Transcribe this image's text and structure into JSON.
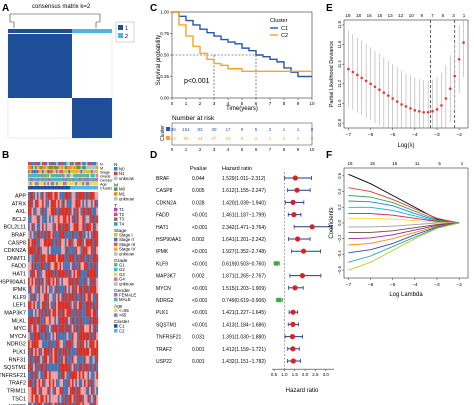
{
  "panel_letters": {
    "A": "A",
    "B": "B",
    "C": "C",
    "D": "D",
    "E": "E",
    "F": "F"
  },
  "panelA": {
    "title": "consensus matrix k=2",
    "legend": [
      "1",
      "2"
    ],
    "colors": {
      "c1": "#1f4e99",
      "c2": "#4fb4e6",
      "dark": "#1f4e99",
      "light": "#ffffff"
    }
  },
  "panelB": {
    "track_labels": [
      "N",
      "M",
      "Stage",
      "Grade",
      "Gender",
      "Age",
      "Cluster"
    ],
    "genes": [
      "APP",
      "ATRX",
      "AXL",
      "BCL2",
      "BCL2L11",
      "BRAF",
      "CASP8",
      "CDKN2A",
      "DNMT1",
      "FADD",
      "HAT1",
      "HSP90AA1",
      "IPMK",
      "KLF9",
      "LEF1",
      "MAP3K7",
      "MLKL",
      "MYC",
      "MYCN",
      "NDRG2",
      "PLK1",
      "RNF31",
      "SQSTM1",
      "TNFRSF21",
      "TRAF2",
      "TRIM11",
      "TSC1",
      "USP22"
    ],
    "legend": [
      {
        "title": "N",
        "items": [
          {
            "label": "N0",
            "color": "#1e88e5"
          },
          {
            "label": "N1",
            "color": "#e53935"
          },
          {
            "label": "unknow",
            "color": "#bdbdbd"
          }
        ]
      },
      {
        "title": "M",
        "items": [
          {
            "label": "M0",
            "color": "#43a047"
          },
          {
            "label": "M1",
            "color": "#fb8c00"
          },
          {
            "label": "unknow",
            "color": "#bdbdbd"
          }
        ]
      },
      {
        "title": "T",
        "items": [
          {
            "label": "T1",
            "color": "#ab47bc"
          },
          {
            "label": "T2",
            "color": "#ec407a"
          },
          {
            "label": "T3",
            "color": "#8d6e63"
          },
          {
            "label": "T4",
            "color": "#26a69a"
          }
        ]
      },
      {
        "title": "Stage",
        "items": [
          {
            "label": "Stage I",
            "color": "#c0ca33"
          },
          {
            "label": "Stage II",
            "color": "#5c6bc0"
          },
          {
            "label": "Stage III",
            "color": "#ef5350"
          },
          {
            "label": "Stage IV",
            "color": "#ffa726"
          },
          {
            "label": "unknow",
            "color": "#bdbdbd"
          }
        ]
      },
      {
        "title": "Grade",
        "items": [
          {
            "label": "G1",
            "color": "#66bb6a"
          },
          {
            "label": "G2",
            "color": "#29b6f6"
          },
          {
            "label": "G3",
            "color": "#d4e157"
          },
          {
            "label": "G4",
            "color": "#f06292"
          },
          {
            "label": "unknow",
            "color": "#bdbdbd"
          }
        ]
      },
      {
        "title": "Gender",
        "items": [
          {
            "label": "FEMALE",
            "color": "#ba68c8"
          },
          {
            "label": "MALE",
            "color": "#4db6ac"
          }
        ]
      },
      {
        "title": "Age",
        "items": [
          {
            "label": "<=65",
            "color": "#ffd54f"
          },
          {
            "label": ">65",
            "color": "#7986cb"
          }
        ]
      },
      {
        "title": "Cluster",
        "items": [
          {
            "label": "C1",
            "color": "#1f4e99"
          },
          {
            "label": "C2",
            "color": "#4fb4e6"
          }
        ]
      }
    ]
  },
  "panelC": {
    "ylabel": "Survival probability",
    "xlabel": "Time(years)",
    "pvalue": "p<0.001",
    "legend_title": "Cluster",
    "legend": [
      {
        "label": "C1",
        "color": "#2b57a8"
      },
      {
        "label": "C2",
        "color": "#f5a623"
      }
    ],
    "yticks": [
      "0.00",
      "0.25",
      "0.50",
      "0.75",
      "1.00"
    ],
    "xticks": [
      "0",
      "1",
      "2",
      "3",
      "4",
      "5",
      "6",
      "7",
      "8",
      "9",
      "10"
    ],
    "risk_title": "Number at risk",
    "risk_ylabel": "Cluster",
    "risk_rows": [
      {
        "values": [
          "238",
          "151",
          "83",
          "39",
          "17",
          "9",
          "5",
          "2",
          "1",
          "1",
          "0"
        ]
      },
      {
        "values": [
          "142",
          "80",
          "44",
          "27",
          "10",
          "6",
          "2",
          "1",
          "0",
          "0",
          "0"
        ]
      }
    ]
  },
  "panelD": {
    "header_pvalue": "Pvalue",
    "header_hr": "Hazard ratio",
    "xlabel": "Hazard ratio",
    "xticks": [
      "0.5",
      "1.0",
      "1.5",
      "2.0",
      "2.5",
      "3.0"
    ],
    "rows": [
      {
        "gene": "BRAF",
        "p": "0.044",
        "hr": "1.529(1.011−2.312)"
      },
      {
        "gene": "CASP8",
        "p": "0.005",
        "hr": "1.612(1.155−2.247)"
      },
      {
        "gene": "CDKN2A",
        "p": "0.028",
        "hr": "1.420(1.039−1.940)"
      },
      {
        "gene": "FADD",
        "p": "<0.001",
        "hr": "1.461(1.187−1.799)"
      },
      {
        "gene": "HAT1",
        "p": "<0.001",
        "hr": "2.342(1.471−3.764)"
      },
      {
        "gene": "HSP90AA1",
        "p": "0.002",
        "hr": "1.641(1.201−2.242)"
      },
      {
        "gene": "IPMK",
        "p": "<0.001",
        "hr": "1.927(1.352−2.748)"
      },
      {
        "gene": "KLF9",
        "p": "<0.001",
        "hr": "0.619(0.503−0.760)"
      },
      {
        "gene": "MAP3K7",
        "p": "0.002",
        "hr": "1.871(1.265−2.767)"
      },
      {
        "gene": "MYCN",
        "p": "<0.001",
        "hr": "1.515(1.203−1.909)"
      },
      {
        "gene": "NDRG2",
        "p": "<0.001",
        "hr": "0.749(0.619−0.906)"
      },
      {
        "gene": "PLK1",
        "p": "<0.001",
        "hr": "1.421(1.227−1.645)"
      },
      {
        "gene": "SQSTM1",
        "p": "<0.001",
        "hr": "1.413(1.184−1.686)"
      },
      {
        "gene": "TNFRSF21",
        "p": "0.031",
        "hr": "1.391(1.030−1.880)"
      },
      {
        "gene": "TRAF2",
        "p": "0.001",
        "hr": "1.412(1.159−1.721)"
      },
      {
        "gene": "USP22",
        "p": "0.001",
        "hr": "1.432(1.151−1.782)"
      }
    ]
  },
  "panelE": {
    "ylabel": "Partial Likelihood Deviance",
    "xlabel": "Log(λ)",
    "top_ticks": [
      "18",
      "18",
      "16",
      "15",
      "13",
      "12",
      "10",
      "9",
      "7",
      "5",
      "3",
      "1"
    ],
    "xticks": [
      "−7",
      "−6",
      "−5",
      "−4",
      "−3",
      "−2"
    ],
    "yticks": [
      "10.8",
      "11.0",
      "11.2",
      "11.4",
      "11.6",
      "11.8"
    ]
  },
  "panelF": {
    "ylabel": "Coefficients",
    "xlabel": "Log Lambda",
    "top_ticks": [
      "18",
      "16",
      "15",
      "11",
      "6",
      "1"
    ],
    "xticks": [
      "−7",
      "−6",
      "−5",
      "−4",
      "−3",
      "−2"
    ],
    "yticks": [
      "−0.6",
      "−0.4",
      "−0.2",
      "0.0",
      "0.2",
      "0.4",
      "0.6"
    ]
  },
  "chart_data": [
    {
      "type": "line",
      "title": "",
      "xlabel": "Time(years)",
      "ylabel": "Survival probability",
      "xlim": [
        0,
        10
      ],
      "ylim": [
        0,
        1
      ],
      "series": [
        {
          "name": "C1",
          "x": [
            0,
            0.5,
            1,
            1.5,
            2,
            2.5,
            3,
            3.5,
            4,
            4.5,
            5,
            5.5,
            6,
            6.5,
            7,
            7.5,
            8,
            8.5,
            9,
            10
          ],
          "y": [
            1.0,
            0.95,
            0.9,
            0.85,
            0.8,
            0.76,
            0.72,
            0.68,
            0.65,
            0.63,
            0.58,
            0.55,
            0.5,
            0.48,
            0.45,
            0.42,
            0.35,
            0.3,
            0.25,
            0.25
          ]
        },
        {
          "name": "C2",
          "x": [
            0,
            0.5,
            1,
            1.5,
            2,
            2.5,
            3,
            3.5,
            4,
            5,
            6,
            7,
            8,
            9,
            10
          ],
          "y": [
            1.0,
            0.85,
            0.72,
            0.6,
            0.52,
            0.45,
            0.4,
            0.38,
            0.34,
            0.31,
            0.31,
            0.31,
            0.31,
            0.31,
            0.31
          ]
        }
      ]
    },
    {
      "type": "scatter",
      "title": "",
      "xlabel": "Hazard ratio",
      "ylabel": "",
      "xlim": [
        0.4,
        3.8
      ],
      "categories": [
        "BRAF",
        "CASP8",
        "CDKN2A",
        "FADD",
        "HAT1",
        "HSP90AA1",
        "IPMK",
        "KLF9",
        "MAP3K7",
        "MYCN",
        "NDRG2",
        "PLK1",
        "SQSTM1",
        "TNFRSF21",
        "TRAF2",
        "USP22"
      ],
      "hr": [
        1.529,
        1.612,
        1.42,
        1.461,
        2.342,
        1.641,
        1.927,
        0.619,
        1.871,
        1.515,
        0.749,
        1.421,
        1.413,
        1.391,
        1.412,
        1.432
      ],
      "low": [
        1.011,
        1.155,
        1.039,
        1.187,
        1.471,
        1.201,
        1.352,
        0.503,
        1.265,
        1.203,
        0.619,
        1.227,
        1.184,
        1.03,
        1.159,
        1.151
      ],
      "high": [
        2.312,
        2.247,
        1.94,
        1.799,
        3.764,
        2.242,
        2.748,
        0.76,
        2.767,
        1.909,
        0.906,
        1.645,
        1.686,
        1.88,
        1.721,
        1.782
      ]
    },
    {
      "type": "scatter",
      "title": "",
      "xlabel": "Log(λ)",
      "ylabel": "Partial Likelihood Deviance",
      "xlim": [
        -7.2,
        -1.6
      ],
      "ylim": [
        10.75,
        11.85
      ],
      "x": [
        -7.0,
        -6.8,
        -6.6,
        -6.4,
        -6.2,
        -6.0,
        -5.8,
        -5.6,
        -5.4,
        -5.2,
        -5.0,
        -4.8,
        -4.6,
        -4.4,
        -4.2,
        -4.0,
        -3.8,
        -3.6,
        -3.4,
        -3.2,
        -3.0,
        -2.8,
        -2.6,
        -2.4,
        -2.2,
        -2.0,
        -1.8
      ],
      "y": [
        11.35,
        11.32,
        11.29,
        11.26,
        11.23,
        11.2,
        11.17,
        11.14,
        11.11,
        11.08,
        11.05,
        11.02,
        10.99,
        10.97,
        10.95,
        10.93,
        10.92,
        10.91,
        10.91,
        10.92,
        10.94,
        10.98,
        11.05,
        11.15,
        11.28,
        11.45,
        11.62
      ],
      "vlines": [
        -3.3,
        -2.2
      ]
    },
    {
      "type": "line",
      "title": "",
      "xlabel": "Log Lambda",
      "ylabel": "Coefficients",
      "xlim": [
        -7.2,
        -1.6
      ],
      "ylim": [
        -0.7,
        0.7
      ],
      "series": [
        {
          "x": [
            -7,
            -6,
            -5,
            -4,
            -3,
            -2
          ],
          "y": [
            0.62,
            0.5,
            0.35,
            0.2,
            0.05,
            0
          ]
        },
        {
          "x": [
            -7,
            -6,
            -5,
            -4,
            -3,
            -2
          ],
          "y": [
            0.45,
            0.4,
            0.3,
            0.18,
            0.06,
            0
          ]
        },
        {
          "x": [
            -7,
            -6,
            -5,
            -4,
            -3,
            -2
          ],
          "y": [
            0.35,
            0.33,
            0.26,
            0.15,
            0.04,
            0
          ]
        },
        {
          "x": [
            -7,
            -6,
            -5,
            -4,
            -3,
            -2
          ],
          "y": [
            0.28,
            0.27,
            0.22,
            0.12,
            0.03,
            0
          ]
        },
        {
          "x": [
            -7,
            -6,
            -5,
            -4,
            -3,
            -2
          ],
          "y": [
            0.2,
            0.2,
            0.16,
            0.09,
            0.02,
            0
          ]
        },
        {
          "x": [
            -7,
            -6,
            -5,
            -4,
            -3,
            -2
          ],
          "y": [
            0.12,
            0.12,
            0.1,
            0.06,
            0.02,
            0
          ]
        },
        {
          "x": [
            -7,
            -6,
            -5,
            -4,
            -3,
            -2
          ],
          "y": [
            0.06,
            0.06,
            0.05,
            0.03,
            0.01,
            0
          ]
        },
        {
          "x": [
            -7,
            -6,
            -5,
            -4,
            -3,
            -2
          ],
          "y": [
            -0.05,
            -0.05,
            -0.04,
            -0.02,
            0,
            0
          ]
        },
        {
          "x": [
            -7,
            -6,
            -5,
            -4,
            -3,
            -2
          ],
          "y": [
            -0.12,
            -0.12,
            -0.1,
            -0.06,
            -0.02,
            0
          ]
        },
        {
          "x": [
            -7,
            -6,
            -5,
            -4,
            -3,
            -2
          ],
          "y": [
            -0.2,
            -0.19,
            -0.15,
            -0.09,
            -0.03,
            0
          ]
        },
        {
          "x": [
            -7,
            -6,
            -5,
            -4,
            -3,
            -2
          ],
          "y": [
            -0.28,
            -0.26,
            -0.2,
            -0.12,
            -0.04,
            0
          ]
        },
        {
          "x": [
            -7,
            -6,
            -5,
            -4,
            -3,
            -2
          ],
          "y": [
            -0.38,
            -0.34,
            -0.26,
            -0.15,
            -0.05,
            0
          ]
        },
        {
          "x": [
            -7,
            -6,
            -5,
            -4,
            -3,
            -2
          ],
          "y": [
            -0.5,
            -0.42,
            -0.3,
            -0.18,
            -0.06,
            0
          ]
        },
        {
          "x": [
            -7,
            -6,
            -5,
            -4,
            -3,
            -2
          ],
          "y": [
            -0.6,
            -0.5,
            -0.35,
            -0.2,
            -0.07,
            0
          ]
        }
      ]
    }
  ]
}
